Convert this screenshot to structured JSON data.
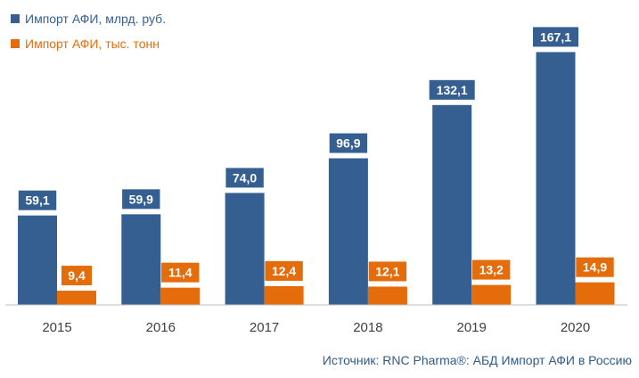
{
  "chart_data": {
    "type": "bar",
    "categories": [
      "2015",
      "2016",
      "2017",
      "2018",
      "2019",
      "2020"
    ],
    "series": [
      {
        "name": "Импорт АФИ, млрд. руб.",
        "values": [
          59.1,
          59.9,
          74.0,
          96.9,
          132.1,
          167.1
        ],
        "labels": [
          "59,1",
          "59,9",
          "74,0",
          "96,9",
          "132,1",
          "167,1"
        ],
        "color": "#355f91"
      },
      {
        "name": "Импорт АФИ, тыс. тонн",
        "values": [
          9.4,
          11.4,
          12.4,
          12.1,
          13.2,
          14.9
        ],
        "labels": [
          "9,4",
          "11,4",
          "12,4",
          "12,1",
          "13,2",
          "14,9"
        ],
        "color": "#e46c0a"
      }
    ],
    "ylim": [
      0,
      175
    ],
    "grid": false,
    "legend": "top-left"
  },
  "source": "Источник: RNC Pharma®: АБД Импорт АФИ в Россию"
}
